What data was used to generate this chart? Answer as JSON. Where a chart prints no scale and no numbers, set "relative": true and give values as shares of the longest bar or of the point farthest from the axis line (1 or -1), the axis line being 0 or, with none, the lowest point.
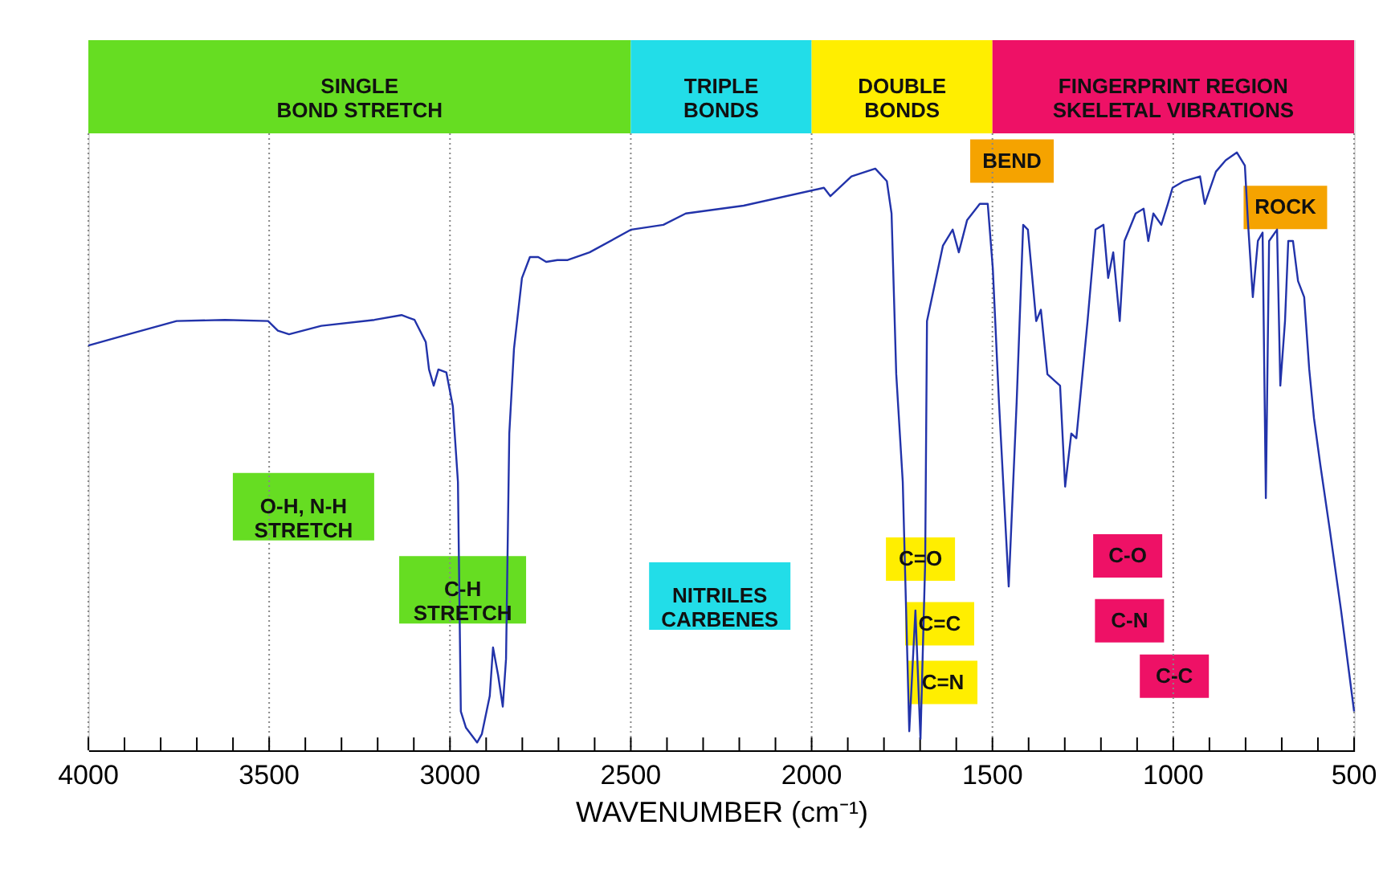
{
  "chart_data": {
    "type": "line",
    "relative": true,
    "xlabel": "WAVENUMBER (cm⁻¹)",
    "xlim": [
      4000,
      500
    ],
    "xticks": [
      4000,
      {
        "value": 3900,
        "label": null
      },
      {
        "value": 3800,
        "label": null
      },
      {
        "value": 3700,
        "label": null
      },
      {
        "value": 3600,
        "label": null
      },
      3500,
      {
        "value": 3400,
        "label": null
      },
      {
        "value": 3300,
        "label": null
      },
      {
        "value": 3200,
        "label": null
      },
      {
        "value": 3100,
        "label": null
      },
      3000,
      {
        "value": 2900,
        "label": null
      },
      {
        "value": 2800,
        "label": null
      },
      {
        "value": 2700,
        "label": null
      },
      {
        "value": 2600,
        "label": null
      },
      2500,
      {
        "value": 2400,
        "label": null
      },
      {
        "value": 2300,
        "label": null
      },
      {
        "value": 2200,
        "label": null
      },
      {
        "value": 2100,
        "label": null
      },
      2000,
      {
        "value": 1900,
        "label": null
      },
      {
        "value": 1800,
        "label": null
      },
      {
        "value": 1700,
        "label": null
      },
      {
        "value": 1600,
        "label": null
      },
      1500,
      {
        "value": 1400,
        "label": null
      },
      {
        "value": 1300,
        "label": null
      },
      {
        "value": 1200,
        "label": null
      },
      {
        "value": 1100,
        "label": null
      },
      1000,
      {
        "value": 900,
        "label": null
      },
      {
        "value": 800,
        "label": null
      },
      {
        "value": 700,
        "label": null
      },
      {
        "value": 600,
        "label": null
      },
      500
    ],
    "grid": "x",
    "series": [
      {
        "color": "#2233aa",
        "x": [
          4000,
          3889,
          3756,
          3622,
          3503,
          3476,
          3445,
          3356,
          3209,
          3134,
          3098,
          3067,
          3058,
          3045,
          3032,
          3010,
          2992,
          2978,
          2970,
          2956,
          2925,
          2912,
          2890,
          2881,
          2867,
          2854,
          2845,
          2836,
          2823,
          2801,
          2779,
          2756,
          2734,
          2703,
          2676,
          2614,
          2499,
          2410,
          2348,
          2188,
          1966,
          1948,
          1890,
          1824,
          1792,
          1779,
          1766,
          1748,
          1730,
          1713,
          1699,
          1686,
          1681,
          1637,
          1610,
          1593,
          1570,
          1535,
          1513,
          1499,
          1482,
          1455,
          1433,
          1415,
          1402,
          1379,
          1366,
          1348,
          1313,
          1299,
          1282,
          1268,
          1237,
          1215,
          1193,
          1180,
          1166,
          1148,
          1135,
          1122,
          1104,
          1082,
          1069,
          1055,
          1033,
          1015,
          1002,
          971,
          926,
          913,
          882,
          855,
          824,
          802,
          793,
          780,
          766,
          753,
          744,
          735,
          713,
          704,
          691,
          682,
          669,
          655,
          638,
          624,
          611,
          593,
          567,
          536,
          513,
          500
        ],
        "values": [
          0.677,
          0.696,
          0.718,
          0.72,
          0.718,
          0.702,
          0.696,
          0.71,
          0.72,
          0.728,
          0.72,
          0.683,
          0.637,
          0.61,
          0.637,
          0.632,
          0.575,
          0.449,
          0.065,
          0.038,
          0.013,
          0.027,
          0.091,
          0.172,
          0.126,
          0.073,
          0.153,
          0.53,
          0.672,
          0.79,
          0.825,
          0.825,
          0.817,
          0.82,
          0.82,
          0.833,
          0.871,
          0.879,
          0.898,
          0.911,
          0.941,
          0.927,
          0.96,
          0.973,
          0.952,
          0.898,
          0.629,
          0.449,
          0.032,
          0.234,
          0.019,
          0.315,
          0.718,
          0.844,
          0.871,
          0.833,
          0.887,
          0.914,
          0.914,
          0.806,
          0.583,
          0.274,
          0.583,
          0.879,
          0.871,
          0.718,
          0.737,
          0.629,
          0.61,
          0.441,
          0.53,
          0.522,
          0.718,
          0.871,
          0.879,
          0.79,
          0.833,
          0.718,
          0.852,
          0.871,
          0.898,
          0.906,
          0.852,
          0.898,
          0.879,
          0.914,
          0.941,
          0.952,
          0.96,
          0.914,
          0.968,
          0.987,
          1,
          0.978,
          0.879,
          0.758,
          0.852,
          0.866,
          0.422,
          0.852,
          0.871,
          0.61,
          0.718,
          0.852,
          0.852,
          0.785,
          0.758,
          0.637,
          0.556,
          0.476,
          0.368,
          0.234,
          0.126,
          0.065
        ]
      }
    ],
    "annotations": [
      "SINGLE\nBOND STRETCH",
      "TRIPLE\nBONDS",
      "DOUBLE\nBONDS",
      "FINGERPRINT REGION\nSKELETAL VIBRATIONS",
      "BEND",
      "ROCK",
      "O-H, N-H\nSTRETCH",
      "C-H\nSTRETCH",
      "NITRILES\nCARBENES",
      "C=O",
      "C=C",
      "C=N",
      "C-O",
      "C-N",
      "C-C"
    ]
  }
}
